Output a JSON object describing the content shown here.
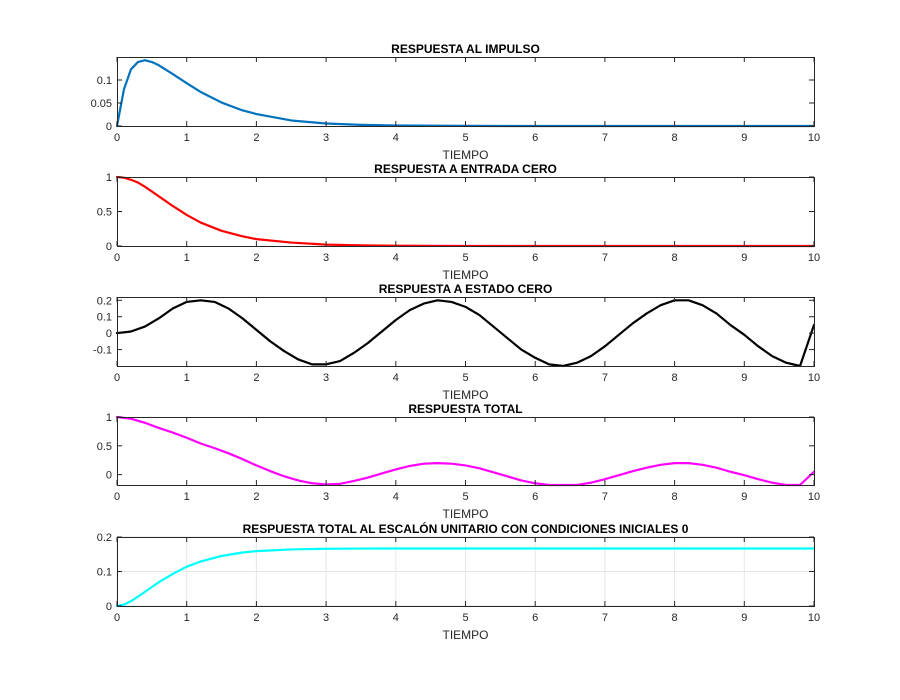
{
  "figure": {
    "background": "#ffffff"
  },
  "chart_data": [
    {
      "type": "line",
      "title": "RESPUESTA AL IMPULSO",
      "xlabel": "TIEMPO",
      "ylabel": "",
      "xlim": [
        0,
        10
      ],
      "ylim": [
        0,
        0.15
      ],
      "xticks": [
        "0",
        "1",
        "2",
        "3",
        "4",
        "5",
        "6",
        "7",
        "8",
        "9",
        "10"
      ],
      "yticks": [
        "0",
        "0.05",
        "0.1"
      ],
      "ytick_values": [
        0,
        0.05,
        0.1
      ],
      "grid": false,
      "color": "#0072bd",
      "series": [
        {
          "x": [
            0,
            0.1,
            0.2,
            0.3,
            0.4,
            0.5,
            0.6,
            0.8,
            1.0,
            1.2,
            1.5,
            1.8,
            2.0,
            2.5,
            3.0,
            3.5,
            4.0,
            5.0,
            6.0,
            7.0,
            8.0,
            9.0,
            10.0
          ],
          "y": [
            0,
            0.08,
            0.123,
            0.139,
            0.143,
            0.139,
            0.132,
            0.113,
            0.093,
            0.074,
            0.051,
            0.034,
            0.026,
            0.012,
            0.0055,
            0.0025,
            0.0011,
            0.0002,
            0,
            0,
            0,
            0,
            0
          ]
        }
      ]
    },
    {
      "type": "line",
      "title": "RESPUESTA A ENTRADA CERO",
      "xlabel": "TIEMPO",
      "ylabel": "",
      "xlim": [
        0,
        10
      ],
      "ylim": [
        0,
        1
      ],
      "xticks": [
        "0",
        "1",
        "2",
        "3",
        "4",
        "5",
        "6",
        "7",
        "8",
        "9",
        "10"
      ],
      "yticks": [
        "0",
        "0.5",
        "1"
      ],
      "ytick_values": [
        0,
        0.5,
        1
      ],
      "grid": false,
      "color": "#ff0000",
      "series": [
        {
          "x": [
            0,
            0.1,
            0.2,
            0.3,
            0.4,
            0.5,
            0.6,
            0.8,
            1.0,
            1.2,
            1.5,
            1.8,
            2.0,
            2.5,
            3.0,
            3.5,
            4.0,
            5.0,
            6.0,
            7.0,
            8.0,
            9.0,
            10.0
          ],
          "y": [
            1,
            0.99,
            0.96,
            0.92,
            0.86,
            0.79,
            0.72,
            0.58,
            0.45,
            0.34,
            0.22,
            0.14,
            0.1,
            0.05,
            0.02,
            0.01,
            0.004,
            0.001,
            0,
            0,
            0,
            0,
            0
          ]
        }
      ]
    },
    {
      "type": "line",
      "title": "RESPUESTA A ESTADO CERO",
      "xlabel": "TIEMPO",
      "ylabel": "",
      "xlim": [
        0,
        10
      ],
      "ylim": [
        -0.2,
        0.22
      ],
      "xticks": [
        "0",
        "1",
        "2",
        "3",
        "4",
        "5",
        "6",
        "7",
        "8",
        "9",
        "10"
      ],
      "yticks": [
        "-0.1",
        "0",
        "0.1",
        "0.2"
      ],
      "ytick_values": [
        -0.1,
        0,
        0.1,
        0.2
      ],
      "grid": false,
      "color": "#000000",
      "series": [
        {
          "x": [
            0,
            0.2,
            0.4,
            0.6,
            0.8,
            1.0,
            1.2,
            1.4,
            1.6,
            1.8,
            2.0,
            2.2,
            2.4,
            2.6,
            2.8,
            3.0,
            3.2,
            3.4,
            3.6,
            3.8,
            4.0,
            4.2,
            4.4,
            4.6,
            4.8,
            5.0,
            5.2,
            5.4,
            5.6,
            5.8,
            6.0,
            6.2,
            6.4,
            6.6,
            6.8,
            7.0,
            7.2,
            7.4,
            7.6,
            7.8,
            8.0,
            8.2,
            8.4,
            8.6,
            8.8,
            9.0,
            9.2,
            9.4,
            9.6,
            9.8,
            10.0
          ],
          "y": [
            0,
            0.01,
            0.04,
            0.09,
            0.15,
            0.19,
            0.2,
            0.19,
            0.15,
            0.09,
            0.02,
            -0.05,
            -0.11,
            -0.16,
            -0.19,
            -0.19,
            -0.17,
            -0.12,
            -0.06,
            0.01,
            0.08,
            0.14,
            0.18,
            0.2,
            0.19,
            0.16,
            0.11,
            0.04,
            -0.03,
            -0.1,
            -0.15,
            -0.19,
            -0.2,
            -0.18,
            -0.14,
            -0.08,
            -0.01,
            0.06,
            0.12,
            0.17,
            0.2,
            0.2,
            0.17,
            0.12,
            0.05,
            -0.01,
            -0.08,
            -0.14,
            -0.18,
            -0.2,
            0.05
          ]
        }
      ]
    },
    {
      "type": "line",
      "title": "RESPUESTA TOTAL",
      "xlabel": "TIEMPO",
      "ylabel": "",
      "xlim": [
        0,
        10
      ],
      "ylim": [
        -0.18,
        1
      ],
      "xticks": [
        "0",
        "1",
        "2",
        "3",
        "4",
        "5",
        "6",
        "7",
        "8",
        "9",
        "10"
      ],
      "yticks": [
        "0",
        "0.5",
        "1"
      ],
      "ytick_values": [
        0,
        0.5,
        1
      ],
      "grid": false,
      "color": "#ff00ff",
      "series": [
        {
          "x": [
            0,
            0.2,
            0.4,
            0.6,
            0.8,
            1.0,
            1.2,
            1.4,
            1.6,
            1.8,
            2.0,
            2.2,
            2.4,
            2.6,
            2.8,
            3.0,
            3.2,
            3.4,
            3.6,
            3.8,
            4.0,
            4.2,
            4.4,
            4.6,
            4.8,
            5.0,
            5.2,
            5.4,
            5.6,
            5.8,
            6.0,
            6.2,
            6.4,
            6.6,
            6.8,
            7.0,
            7.2,
            7.4,
            7.6,
            7.8,
            8.0,
            8.2,
            8.4,
            8.6,
            8.8,
            9.0,
            9.2,
            9.4,
            9.6,
            9.8,
            10.0
          ],
          "y": [
            1,
            0.97,
            0.9,
            0.81,
            0.73,
            0.64,
            0.54,
            0.46,
            0.37,
            0.27,
            0.16,
            0.06,
            -0.03,
            -0.1,
            -0.15,
            -0.17,
            -0.16,
            -0.11,
            -0.05,
            0.02,
            0.09,
            0.15,
            0.19,
            0.2,
            0.19,
            0.16,
            0.11,
            0.04,
            -0.03,
            -0.1,
            -0.15,
            -0.19,
            -0.2,
            -0.18,
            -0.14,
            -0.08,
            -0.01,
            0.06,
            0.12,
            0.17,
            0.2,
            0.2,
            0.17,
            0.12,
            0.05,
            -0.01,
            -0.08,
            -0.14,
            -0.18,
            -0.2,
            0.05
          ]
        }
      ]
    },
    {
      "type": "line",
      "title": "RESPUESTA TOTAL AL ESCALÓN UNITARIO CON CONDICIONES INICIALES 0",
      "xlabel": "TIEMPO",
      "ylabel": "",
      "xlim": [
        0,
        10
      ],
      "ylim": [
        0,
        0.2
      ],
      "xticks": [
        "0",
        "1",
        "2",
        "3",
        "4",
        "5",
        "6",
        "7",
        "8",
        "9",
        "10"
      ],
      "yticks": [
        "0",
        "0.1",
        "0.2"
      ],
      "ytick_values": [
        0,
        0.1,
        0.2
      ],
      "grid": true,
      "color": "#00ffff",
      "series": [
        {
          "x": [
            0,
            0.1,
            0.2,
            0.3,
            0.4,
            0.5,
            0.6,
            0.8,
            1.0,
            1.2,
            1.5,
            1.8,
            2.0,
            2.5,
            3.0,
            3.5,
            4.0,
            5.0,
            6.0,
            7.0,
            8.0,
            9.0,
            10.0
          ],
          "y": [
            0,
            0.004,
            0.014,
            0.027,
            0.041,
            0.055,
            0.069,
            0.093,
            0.114,
            0.129,
            0.145,
            0.155,
            0.159,
            0.164,
            0.166,
            0.1665,
            0.1667,
            0.1667,
            0.1667,
            0.1667,
            0.1667,
            0.1667,
            0.1667
          ]
        }
      ]
    }
  ]
}
